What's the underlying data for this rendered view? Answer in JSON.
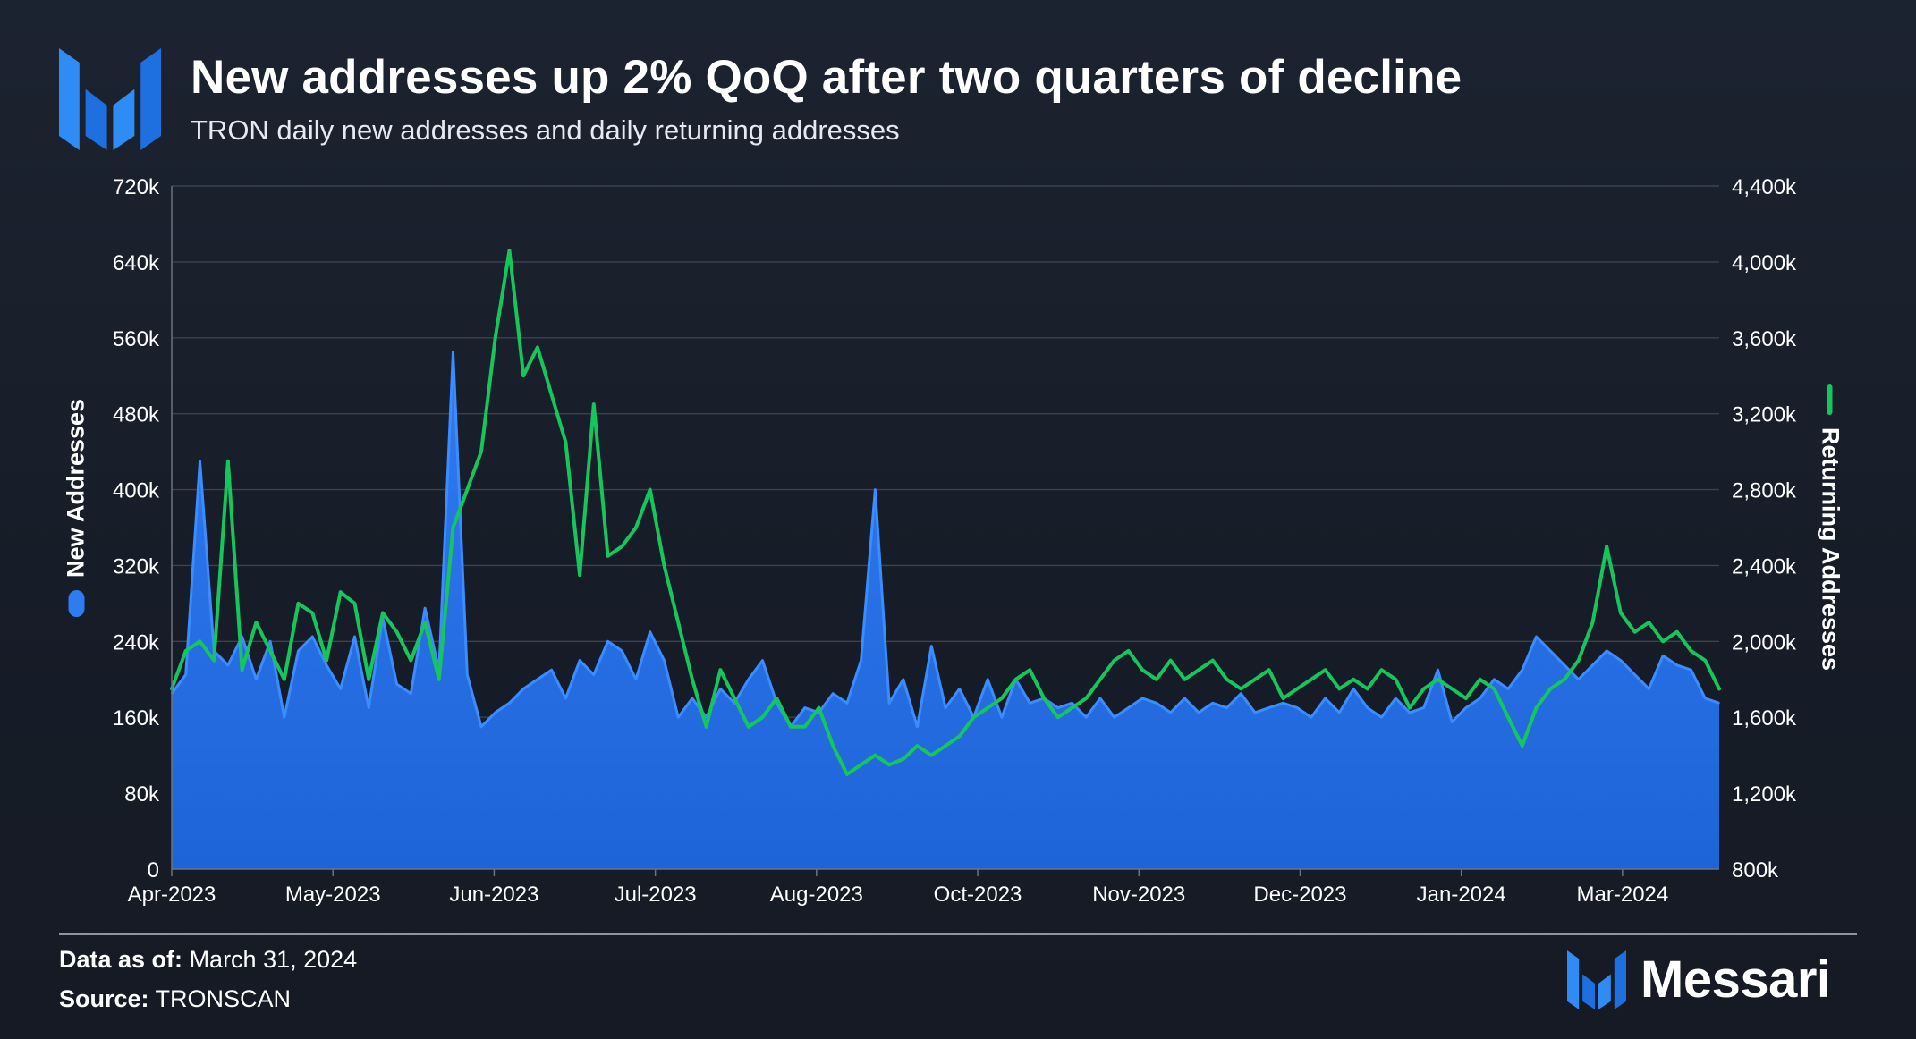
{
  "header": {
    "title": "New addresses up 2% QoQ after two quarters of decline",
    "subtitle": "TRON daily new addresses and daily returning addresses"
  },
  "footer": {
    "as_of_label": "Data as of:",
    "as_of_value": "March 31, 2024",
    "source_label": "Source:",
    "source_value": "TRONSCAN",
    "brand": "Messari"
  },
  "colors": {
    "new_addresses": "#2f7bf0",
    "returning_addresses": "#16c65c",
    "grid": "#3a4250",
    "text": "#ffffff"
  },
  "chart_data": {
    "type": "area",
    "title": "New addresses up 2% QoQ after two quarters of decline",
    "subtitle": "TRON daily new addresses and daily returning addresses",
    "ylabel_left": "New Addresses",
    "ylabel_right": "Returning Addresses",
    "ylim_left": [
      0,
      720
    ],
    "ylim_right": [
      800,
      4400
    ],
    "units": "thousands of addresses",
    "yticks_left": [
      "0",
      "80k",
      "160k",
      "240k",
      "320k",
      "400k",
      "480k",
      "560k",
      "640k",
      "720k"
    ],
    "yticks_right": [
      "800k",
      "1,200k",
      "1,600k",
      "2,000k",
      "2,400k",
      "2,800k",
      "3,200k",
      "3,600k",
      "4,000k",
      "4,400k"
    ],
    "xticks": [
      "Apr-2023",
      "May-2023",
      "Jun-2023",
      "Jul-2023",
      "Aug-2023",
      "Oct-2023",
      "Nov-2023",
      "Dec-2023",
      "Jan-2024",
      "Mar-2024"
    ],
    "x_index_range": [
      0,
      48
    ],
    "grid": true,
    "series": [
      {
        "name": "New Addresses",
        "axis": "left",
        "style": "area",
        "values": [
          185,
          205,
          430,
          230,
          215,
          245,
          200,
          240,
          160,
          230,
          245,
          215,
          190,
          245,
          170,
          265,
          195,
          185,
          275,
          210,
          545,
          205,
          150,
          165,
          175,
          190,
          200,
          210,
          180,
          220,
          205,
          240,
          230,
          200,
          250,
          220,
          160,
          180,
          160,
          190,
          175,
          200,
          220,
          175,
          150,
          170,
          165,
          185,
          175,
          220,
          400,
          175,
          200,
          150,
          235,
          170,
          190,
          160,
          200,
          160,
          200,
          175,
          180,
          170,
          175,
          160,
          180,
          160,
          170,
          180,
          175,
          165,
          180,
          165,
          175,
          170,
          185,
          165,
          170,
          175,
          170,
          160,
          180,
          165,
          190,
          170,
          160,
          180,
          165,
          170,
          210,
          155,
          170,
          180,
          200,
          190,
          210,
          245,
          230,
          215,
          200,
          215,
          230,
          220,
          205,
          190,
          225,
          215,
          210,
          180,
          175
        ]
      },
      {
        "name": "Returning Addresses",
        "axis": "right",
        "style": "line",
        "values": [
          1750,
          1950,
          2000,
          1900,
          2950,
          1850,
          2100,
          1950,
          1800,
          2200,
          2150,
          1900,
          2260,
          2200,
          1800,
          2150,
          2050,
          1900,
          2100,
          1800,
          2600,
          2800,
          3000,
          3600,
          4060,
          3400,
          3550,
          3300,
          3050,
          2350,
          3250,
          2450,
          2500,
          2600,
          2800,
          2400,
          2100,
          1800,
          1550,
          1850,
          1700,
          1550,
          1600,
          1700,
          1550,
          1550,
          1650,
          1450,
          1300,
          1350,
          1400,
          1350,
          1380,
          1450,
          1400,
          1450,
          1500,
          1600,
          1650,
          1700,
          1800,
          1850,
          1700,
          1600,
          1650,
          1700,
          1800,
          1900,
          1950,
          1850,
          1800,
          1900,
          1800,
          1850,
          1900,
          1800,
          1750,
          1800,
          1850,
          1700,
          1750,
          1800,
          1850,
          1750,
          1800,
          1750,
          1850,
          1800,
          1650,
          1750,
          1800,
          1750,
          1700,
          1800,
          1750,
          1600,
          1450,
          1650,
          1750,
          1800,
          1900,
          2100,
          2500,
          2150,
          2050,
          2100,
          2000,
          2050,
          1950,
          1900,
          1750
        ]
      }
    ]
  }
}
